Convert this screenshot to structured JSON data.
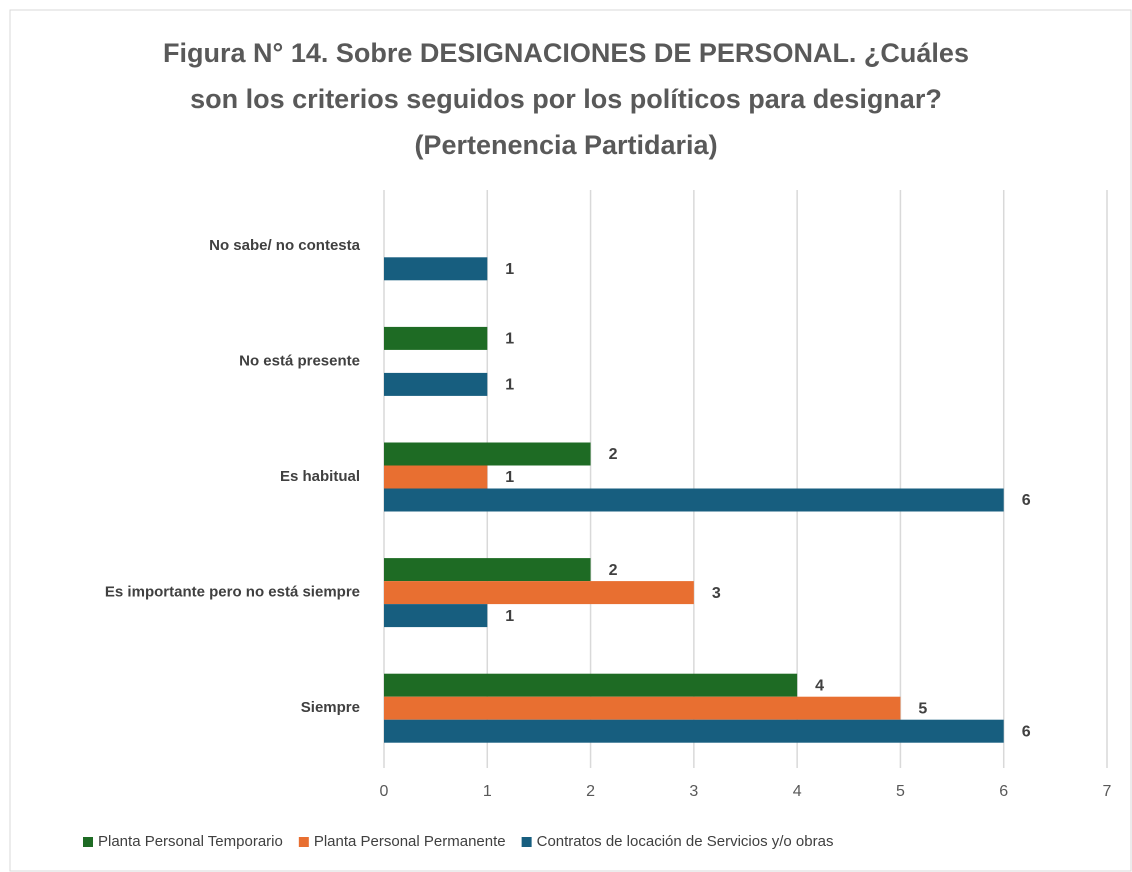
{
  "chart_data": {
    "type": "bar",
    "orientation": "horizontal",
    "title": "Figura N° 14. Sobre DESIGNACIONES DE PERSONAL. ¿Cuáles son los criterios seguidos por los políticos para designar? (Pertenencia Partidaria)",
    "categories": [
      "No sabe/ no contesta",
      "No está presente",
      "Es habitual",
      "Es importante pero no está siempre",
      "Siempre"
    ],
    "series": [
      {
        "name": "Planta Personal Temporario",
        "color": "#1e6b24",
        "values": [
          null,
          1,
          2,
          2,
          4
        ]
      },
      {
        "name": "Planta Personal Permanente",
        "color": "#e86f31",
        "values": [
          null,
          null,
          1,
          3,
          5
        ]
      },
      {
        "name": "Contratos de locación de Servicios y/o obras",
        "color": "#175e7f",
        "values": [
          1,
          1,
          6,
          1,
          6
        ]
      }
    ],
    "xlim": [
      0,
      7
    ],
    "xticks": [
      0,
      1,
      2,
      3,
      4,
      5,
      6,
      7
    ],
    "grid": true,
    "legend": "bottom"
  }
}
